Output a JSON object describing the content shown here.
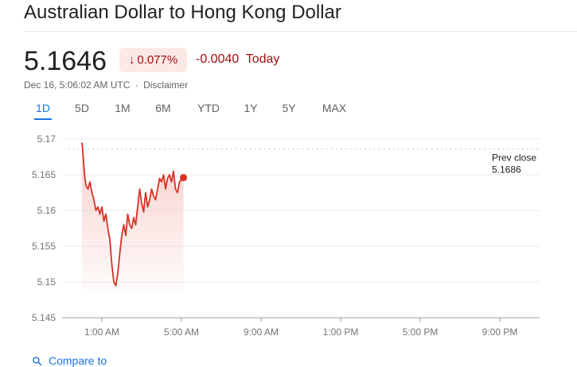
{
  "header": {
    "title": "Australian Dollar to Hong Kong Dollar"
  },
  "quote": {
    "price": "5.1646",
    "change_percent": "0.077%",
    "change_direction": "down",
    "change_abs": "-0.0040",
    "change_period": "Today",
    "timestamp": "Dec 16, 5:06:02 AM UTC",
    "separator": "·",
    "disclaimer": "Disclaimer"
  },
  "tabs": [
    {
      "label": "1D",
      "active": true
    },
    {
      "label": "5D",
      "active": false
    },
    {
      "label": "1M",
      "active": false
    },
    {
      "label": "6M",
      "active": false
    },
    {
      "label": "YTD",
      "active": false
    },
    {
      "label": "1Y",
      "active": false
    },
    {
      "label": "5Y",
      "active": false
    },
    {
      "label": "MAX",
      "active": false
    }
  ],
  "chart_data": {
    "type": "line",
    "ylim": [
      5.145,
      5.17
    ],
    "xlim": [
      -1,
      23
    ],
    "y_ticks": [
      {
        "value": 5.17,
        "label": "5.17"
      },
      {
        "value": 5.165,
        "label": "5.165"
      },
      {
        "value": 5.16,
        "label": "5.16"
      },
      {
        "value": 5.155,
        "label": "5.155"
      },
      {
        "value": 5.15,
        "label": "5.15"
      },
      {
        "value": 5.145,
        "label": "5.145"
      }
    ],
    "x_ticks": [
      {
        "value": 1,
        "label": "1:00 AM"
      },
      {
        "value": 5,
        "label": "5:00 AM"
      },
      {
        "value": 9,
        "label": "9:00 AM"
      },
      {
        "value": 13,
        "label": "1:00 PM"
      },
      {
        "value": 17,
        "label": "5:00 PM"
      },
      {
        "value": 21,
        "label": "9:00 PM"
      }
    ],
    "prev_close": {
      "value": 5.1686,
      "label_line1": "Prev close",
      "label_line2": "5.1686"
    },
    "colors": {
      "line": "#d93025",
      "fill_top": "#f6c9c4",
      "grid": "#e8eaed",
      "dots": "#bdc1c6",
      "axis": "#9aa0a6"
    },
    "series": [
      {
        "x": [
          0,
          0.05,
          0.1,
          0.15,
          0.2,
          0.3,
          0.4,
          0.5,
          0.6,
          0.7,
          0.8,
          0.9,
          1.0,
          1.1,
          1.2,
          1.3,
          1.4,
          1.5,
          1.6,
          1.7,
          1.8,
          1.9,
          2.0,
          2.1,
          2.2,
          2.3,
          2.4,
          2.5,
          2.6,
          2.7,
          2.8,
          2.9,
          3.0,
          3.1,
          3.2,
          3.3,
          3.4,
          3.5,
          3.6,
          3.7,
          3.8,
          3.9,
          4.0,
          4.1,
          4.2,
          4.3,
          4.4,
          4.5,
          4.6,
          4.7,
          4.8,
          4.9,
          5.0,
          5.1
        ],
        "values": [
          5.1695,
          5.168,
          5.166,
          5.1645,
          5.1635,
          5.163,
          5.164,
          5.1625,
          5.1615,
          5.16,
          5.1605,
          5.1595,
          5.1605,
          5.1585,
          5.1595,
          5.1575,
          5.156,
          5.1525,
          5.15,
          5.1495,
          5.1512,
          5.154,
          5.1565,
          5.158,
          5.1565,
          5.1595,
          5.158,
          5.1575,
          5.159,
          5.158,
          5.1605,
          5.163,
          5.161,
          5.1598,
          5.1625,
          5.1605,
          5.1615,
          5.163,
          5.162,
          5.1615,
          5.163,
          5.1645,
          5.164,
          5.165,
          5.163,
          5.1645,
          5.165,
          5.164,
          5.1655,
          5.163,
          5.1625,
          5.164,
          5.1643,
          5.1646
        ]
      }
    ]
  },
  "compare": {
    "icon": "search-icon",
    "label": "Compare to"
  }
}
